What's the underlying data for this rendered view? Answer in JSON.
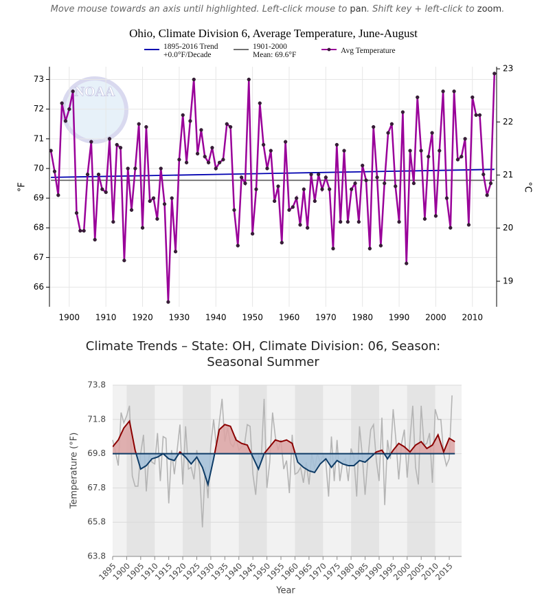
{
  "instructions": [
    "Move mouse towards an axis until highlighted. Left-click mouse to ",
    "pan",
    ". Shift key + left-click to ",
    "zoom",
    "."
  ],
  "chart_data": [
    {
      "type": "line",
      "title": "Ohio, Climate Division 6, Average Temperature, June-August",
      "watermark": "NOAA",
      "ylabel": "°F",
      "y2label": "°C",
      "legend": "top",
      "grid": true,
      "xlim": [
        1894.6,
        2016.6
      ],
      "ylim": [
        65.34,
        73.43
      ],
      "y2lim": [
        18.52,
        23.04
      ],
      "xticks": [
        1900,
        1910,
        1920,
        1930,
        1940,
        1950,
        1960,
        1970,
        1980,
        1990,
        2000,
        2010
      ],
      "yticks": [
        66,
        67,
        68,
        69,
        70,
        71,
        72,
        73
      ],
      "y2ticks": [
        19,
        20,
        21,
        22,
        23
      ],
      "series": [
        {
          "name": "1895-2016 Trend\n+0.0°F/Decade",
          "color": "#0000b0",
          "x": [
            1895,
            2016
          ],
          "values": [
            69.7,
            69.97
          ]
        },
        {
          "name": "1901-2000\nMean: 69.6°F",
          "color": "#707070",
          "x": [
            1895,
            2016
          ],
          "values": [
            69.6,
            69.6
          ]
        },
        {
          "name": "Avg Temperature",
          "color": "#990099",
          "markers": true,
          "x": [
            1895,
            1896,
            1897,
            1898,
            1899,
            1900,
            1901,
            1902,
            1903,
            1904,
            1905,
            1906,
            1907,
            1908,
            1909,
            1910,
            1911,
            1912,
            1913,
            1914,
            1915,
            1916,
            1917,
            1918,
            1919,
            1920,
            1921,
            1922,
            1923,
            1924,
            1925,
            1926,
            1927,
            1928,
            1929,
            1930,
            1931,
            1932,
            1933,
            1934,
            1935,
            1936,
            1937,
            1938,
            1939,
            1940,
            1941,
            1942,
            1943,
            1944,
            1945,
            1946,
            1947,
            1948,
            1949,
            1950,
            1951,
            1952,
            1953,
            1954,
            1955,
            1956,
            1957,
            1958,
            1959,
            1960,
            1961,
            1962,
            1963,
            1964,
            1965,
            1966,
            1967,
            1968,
            1969,
            1970,
            1971,
            1972,
            1973,
            1974,
            1975,
            1976,
            1977,
            1978,
            1979,
            1980,
            1981,
            1982,
            1983,
            1984,
            1985,
            1986,
            1987,
            1988,
            1989,
            1990,
            1991,
            1992,
            1993,
            1994,
            1995,
            1996,
            1997,
            1998,
            1999,
            2000,
            2001,
            2002,
            2003,
            2004,
            2005,
            2006,
            2007,
            2008,
            2009,
            2010,
            2011,
            2012,
            2013,
            2014,
            2015,
            2016
          ],
          "values": [
            70.6,
            69.9,
            69.1,
            72.2,
            71.6,
            72.0,
            72.6,
            68.5,
            67.9,
            67.9,
            69.8,
            70.9,
            67.6,
            69.8,
            69.3,
            69.2,
            71.0,
            68.2,
            70.8,
            70.7,
            66.9,
            70.0,
            68.6,
            70.0,
            71.5,
            68.0,
            71.4,
            68.9,
            69.0,
            68.3,
            70.0,
            68.8,
            65.5,
            69.0,
            67.2,
            70.3,
            71.8,
            70.2,
            71.6,
            73.0,
            70.5,
            71.3,
            70.4,
            70.2,
            70.7,
            70.0,
            70.2,
            70.3,
            71.5,
            71.4,
            68.6,
            67.4,
            69.7,
            69.5,
            73.0,
            67.8,
            69.3,
            72.2,
            70.8,
            70.0,
            70.6,
            68.9,
            69.4,
            67.5,
            70.9,
            68.6,
            68.7,
            69.0,
            68.1,
            69.3,
            68.0,
            69.8,
            68.9,
            69.8,
            69.3,
            69.7,
            69.3,
            67.3,
            70.8,
            68.2,
            70.6,
            68.2,
            69.3,
            69.5,
            68.2,
            70.1,
            69.6,
            67.3,
            71.4,
            69.7,
            67.4,
            69.5,
            71.2,
            71.5,
            69.4,
            68.2,
            71.9,
            66.8,
            70.6,
            69.5,
            72.4,
            70.6,
            68.3,
            70.4,
            71.2,
            68.4,
            70.6,
            72.6,
            69.0,
            68.0,
            72.6,
            70.3,
            70.4,
            71.0,
            68.1,
            72.4,
            71.8,
            71.8,
            69.8,
            69.1,
            69.5,
            73.2
          ]
        }
      ]
    },
    {
      "type": "area",
      "title": "Climate Trends – State: OH, Climate Division: 06, Season: Seasonal Summer",
      "xlabel": "Year",
      "ylabel": "Temperature (°F)",
      "grid": true,
      "baseline": 69.8,
      "xlim": [
        1895,
        2019.4
      ],
      "ylim": [
        63.8,
        73.8
      ],
      "xticks": [
        1895,
        1900,
        1905,
        1910,
        1915,
        1920,
        1925,
        1930,
        1935,
        1940,
        1945,
        1950,
        1955,
        1960,
        1965,
        1970,
        1975,
        1980,
        1985,
        1990,
        1995,
        2000,
        2005,
        2010,
        2015
      ],
      "yticks": [
        63.8,
        65.8,
        67.8,
        69.8,
        71.8,
        73.8
      ],
      "series": [
        {
          "color": "#b4b4b4",
          "x": [
            1895,
            1896,
            1897,
            1898,
            1899,
            1900,
            1901,
            1902,
            1903,
            1904,
            1905,
            1906,
            1907,
            1908,
            1909,
            1910,
            1911,
            1912,
            1913,
            1914,
            1915,
            1916,
            1917,
            1918,
            1919,
            1920,
            1921,
            1922,
            1923,
            1924,
            1925,
            1926,
            1927,
            1928,
            1929,
            1930,
            1931,
            1932,
            1933,
            1934,
            1935,
            1936,
            1937,
            1938,
            1939,
            1940,
            1941,
            1942,
            1943,
            1944,
            1945,
            1946,
            1947,
            1948,
            1949,
            1950,
            1951,
            1952,
            1953,
            1954,
            1955,
            1956,
            1957,
            1958,
            1959,
            1960,
            1961,
            1962,
            1963,
            1964,
            1965,
            1966,
            1967,
            1968,
            1969,
            1970,
            1971,
            1972,
            1973,
            1974,
            1975,
            1976,
            1977,
            1978,
            1979,
            1980,
            1981,
            1982,
            1983,
            1984,
            1985,
            1986,
            1987,
            1988,
            1989,
            1990,
            1991,
            1992,
            1993,
            1994,
            1995,
            1996,
            1997,
            1998,
            1999,
            2000,
            2001,
            2002,
            2003,
            2004,
            2005,
            2006,
            2007,
            2008,
            2009,
            2010,
            2011,
            2012,
            2013,
            2014,
            2015,
            2016
          ],
          "values": [
            70.6,
            69.9,
            69.1,
            72.2,
            71.6,
            72.0,
            72.6,
            68.5,
            67.9,
            67.9,
            69.8,
            70.9,
            67.6,
            69.8,
            69.3,
            69.2,
            71.0,
            68.2,
            70.8,
            70.7,
            66.9,
            70.0,
            68.6,
            70.0,
            71.5,
            68.0,
            71.4,
            68.9,
            69.0,
            68.3,
            70.0,
            68.8,
            65.5,
            69.0,
            67.2,
            70.3,
            71.8,
            70.2,
            71.6,
            73.0,
            70.5,
            71.3,
            70.4,
            70.2,
            70.7,
            70.0,
            70.2,
            70.3,
            71.5,
            71.4,
            68.6,
            67.4,
            69.7,
            69.5,
            73.0,
            67.8,
            69.3,
            72.2,
            70.8,
            70.0,
            70.6,
            68.9,
            69.4,
            67.5,
            70.9,
            68.6,
            68.7,
            69.0,
            68.1,
            69.3,
            68.0,
            69.8,
            68.9,
            69.8,
            69.3,
            69.7,
            69.3,
            67.3,
            70.8,
            68.2,
            70.6,
            68.2,
            69.3,
            69.5,
            68.2,
            70.1,
            69.6,
            67.3,
            71.4,
            69.7,
            67.4,
            69.5,
            71.2,
            71.5,
            69.4,
            68.2,
            71.9,
            66.8,
            70.6,
            69.5,
            72.4,
            70.6,
            68.3,
            70.4,
            71.2,
            68.4,
            70.6,
            72.6,
            69.0,
            68.0,
            72.6,
            70.3,
            70.4,
            71.0,
            68.1,
            72.4,
            71.8,
            71.8,
            69.8,
            69.1,
            69.5,
            73.2
          ]
        },
        {
          "color": "#8b0000",
          "color_below": "#0d3b66",
          "fill_above": "#dca3a3",
          "fill_below": "#a5c1d9",
          "x": [
            1895,
            1897,
            1899,
            1901,
            1903,
            1905,
            1907,
            1909,
            1911,
            1913,
            1915,
            1917,
            1919,
            1921,
            1923,
            1925,
            1927,
            1929,
            1931,
            1933,
            1935,
            1937,
            1939,
            1941,
            1943,
            1945,
            1947,
            1949,
            1951,
            1953,
            1955,
            1957,
            1959,
            1961,
            1963,
            1965,
            1967,
            1969,
            1971,
            1973,
            1975,
            1977,
            1979,
            1981,
            1983,
            1985,
            1987,
            1989,
            1991,
            1993,
            1995,
            1997,
            1999,
            2001,
            2003,
            2005,
            2007,
            2009,
            2011,
            2013,
            2015,
            2017
          ],
          "values": [
            70.2,
            70.6,
            71.3,
            71.7,
            70.0,
            68.9,
            69.1,
            69.5,
            69.6,
            69.8,
            69.5,
            69.4,
            69.9,
            69.6,
            69.2,
            69.6,
            69.0,
            68.0,
            69.5,
            71.2,
            71.5,
            71.4,
            70.6,
            70.4,
            70.3,
            69.6,
            68.9,
            69.8,
            70.2,
            70.6,
            70.5,
            70.6,
            70.4,
            69.3,
            69.0,
            68.8,
            68.7,
            69.2,
            69.5,
            69.0,
            69.4,
            69.2,
            69.1,
            69.1,
            69.4,
            69.3,
            69.6,
            69.9,
            70.0,
            69.5,
            70.0,
            70.4,
            70.2,
            69.9,
            70.3,
            70.5,
            70.1,
            70.3,
            70.9,
            69.9,
            70.7,
            70.5
          ]
        }
      ]
    }
  ]
}
